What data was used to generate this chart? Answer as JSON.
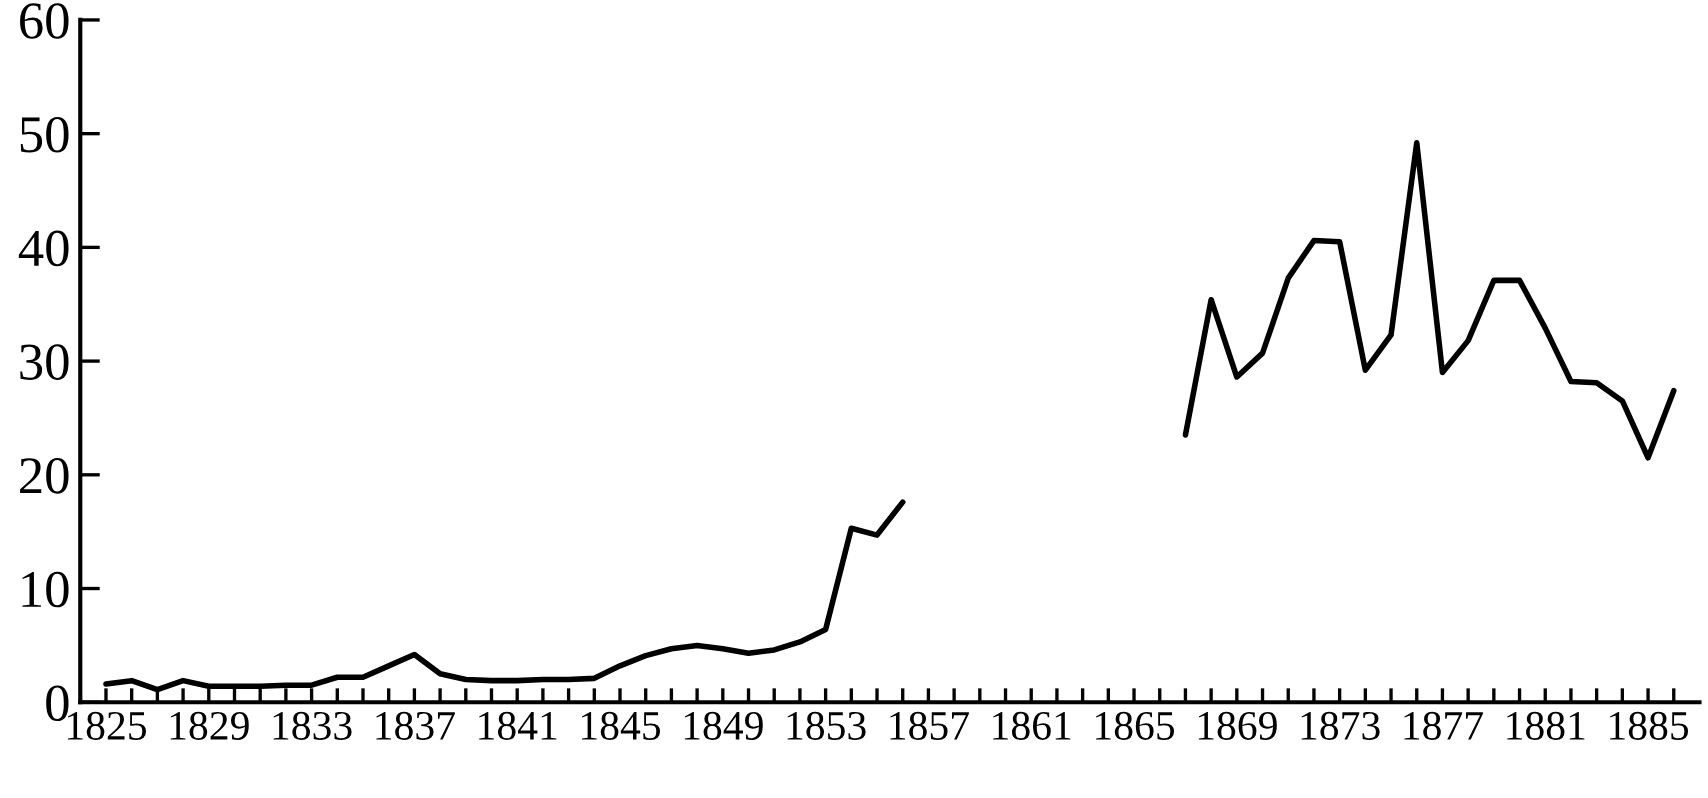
{
  "chart_data": {
    "type": "line",
    "x": [
      1825,
      1826,
      1827,
      1828,
      1829,
      1830,
      1831,
      1832,
      1833,
      1834,
      1835,
      1836,
      1837,
      1838,
      1839,
      1840,
      1841,
      1842,
      1843,
      1844,
      1845,
      1846,
      1847,
      1848,
      1849,
      1850,
      1851,
      1852,
      1853,
      1854,
      1855,
      1856,
      1857,
      1858,
      1859,
      1860,
      1861,
      1862,
      1863,
      1864,
      1865,
      1866,
      1867,
      1868,
      1869,
      1870,
      1871,
      1872,
      1873,
      1874,
      1875,
      1876,
      1877,
      1878,
      1879,
      1880,
      1881,
      1882,
      1883,
      1884,
      1885,
      1886
    ],
    "series": [
      {
        "color": "#000000",
        "values": [
          1.6,
          1.9,
          1.1,
          1.9,
          1.4,
          1.4,
          1.4,
          1.5,
          1.5,
          2.2,
          2.2,
          3.2,
          4.2,
          2.5,
          2.0,
          1.9,
          1.9,
          2.0,
          2.0,
          2.1,
          3.2,
          4.1,
          4.7,
          5.0,
          4.7,
          4.3,
          4.6,
          5.3,
          6.4,
          15.3,
          14.7,
          17.6,
          null,
          null,
          null,
          null,
          null,
          null,
          null,
          null,
          null,
          null,
          23.5,
          35.4,
          28.6,
          30.7,
          37.3,
          40.6,
          40.5,
          29.2,
          32.3,
          49.2,
          29.0,
          31.8,
          37.1,
          37.1,
          32.9,
          28.2,
          28.1,
          26.5,
          21.5,
          27.4
        ]
      }
    ],
    "xlim": [
      1824,
      1887
    ],
    "xticks": [
      1825,
      {
        "value": 1826,
        "label": null
      },
      {
        "value": 1827,
        "label": null
      },
      {
        "value": 1828,
        "label": null
      },
      1829,
      {
        "value": 1830,
        "label": null
      },
      {
        "value": 1831,
        "label": null
      },
      {
        "value": 1832,
        "label": null
      },
      1833,
      {
        "value": 1834,
        "label": null
      },
      {
        "value": 1835,
        "label": null
      },
      {
        "value": 1836,
        "label": null
      },
      1837,
      {
        "value": 1838,
        "label": null
      },
      {
        "value": 1839,
        "label": null
      },
      {
        "value": 1840,
        "label": null
      },
      1841,
      {
        "value": 1842,
        "label": null
      },
      {
        "value": 1843,
        "label": null
      },
      {
        "value": 1844,
        "label": null
      },
      1845,
      {
        "value": 1846,
        "label": null
      },
      {
        "value": 1847,
        "label": null
      },
      {
        "value": 1848,
        "label": null
      },
      1849,
      {
        "value": 1850,
        "label": null
      },
      {
        "value": 1851,
        "label": null
      },
      {
        "value": 1852,
        "label": null
      },
      1853,
      {
        "value": 1854,
        "label": null
      },
      {
        "value": 1855,
        "label": null
      },
      {
        "value": 1856,
        "label": null
      },
      1857,
      {
        "value": 1858,
        "label": null
      },
      {
        "value": 1859,
        "label": null
      },
      {
        "value": 1860,
        "label": null
      },
      1861,
      {
        "value": 1862,
        "label": null
      },
      {
        "value": 1863,
        "label": null
      },
      {
        "value": 1864,
        "label": null
      },
      1865,
      {
        "value": 1866,
        "label": null
      },
      {
        "value": 1867,
        "label": null
      },
      {
        "value": 1868,
        "label": null
      },
      1869,
      {
        "value": 1870,
        "label": null
      },
      {
        "value": 1871,
        "label": null
      },
      {
        "value": 1872,
        "label": null
      },
      1873,
      {
        "value": 1874,
        "label": null
      },
      {
        "value": 1875,
        "label": null
      },
      {
        "value": 1876,
        "label": null
      },
      1877,
      {
        "value": 1878,
        "label": null
      },
      {
        "value": 1879,
        "label": null
      },
      {
        "value": 1880,
        "label": null
      },
      1881,
      {
        "value": 1882,
        "label": null
      },
      {
        "value": 1883,
        "label": null
      },
      {
        "value": 1884,
        "label": null
      },
      1885,
      {
        "value": 1886,
        "label": null
      }
    ],
    "ylim": [
      0,
      60
    ],
    "yticks": [
      0,
      10,
      20,
      30,
      40,
      50,
      60
    ],
    "grid": false,
    "marker": "none",
    "line_style": "solid"
  }
}
